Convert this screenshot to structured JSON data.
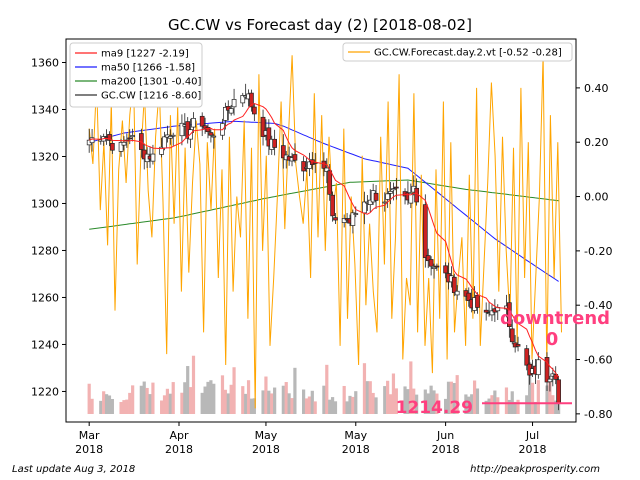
{
  "chart_data": {
    "type": "candlestick",
    "title": "GC.CW vs Forecast day (2)  [2018-08-02]",
    "footer_left": "Last update Aug  3, 2018",
    "footer_right": "http://peakprosperity.com",
    "x_ticks": [
      {
        "label1": "Mar",
        "label2": "2018",
        "day": 0
      },
      {
        "label1": "Apr",
        "label2": "2018",
        "day": 31
      },
      {
        "label1": "May",
        "label2": "2018",
        "day": 61
      },
      {
        "label1": "May",
        "label2": "2018",
        "day": 92
      },
      {
        "label1": "Jun",
        "label2": "2018",
        "day": 123
      },
      {
        "label1": "Jul",
        "label2": "2018",
        "day": 153
      }
    ],
    "x_range_days": [
      -8,
      168
    ],
    "left_axis": {
      "ticks": [
        1220,
        1240,
        1260,
        1280,
        1300,
        1320,
        1340,
        1360
      ],
      "range": [
        1207,
        1370
      ]
    },
    "right_axis": {
      "ticks": [
        "0.40",
        "0.20",
        "0.00",
        "-0.20",
        "-0.40",
        "-0.60",
        "-0.80"
      ],
      "tick_values": [
        0.4,
        0.2,
        0.0,
        -0.2,
        -0.4,
        -0.6,
        -0.8
      ],
      "range": [
        -0.83,
        0.58
      ]
    },
    "legend_left": [
      {
        "label": "ma9 [1227 -2.19]",
        "color": "#ff2020"
      },
      {
        "label": "ma50 [1266 -1.58]",
        "color": "#1f1fff"
      },
      {
        "label": "ma200 [1301 -0.40]",
        "color": "#2a8a2a"
      },
      {
        "label": "GC.CW [1216 -8.60]",
        "color": "#333333"
      }
    ],
    "legend_right": [
      {
        "label": "GC.CW.Forecast.day.2.vt [-0.52 -0.28]",
        "color": "#ffa500"
      }
    ],
    "annotations": {
      "trend_label": "downtrend",
      "trend_value": "0",
      "last_price": "1214.29",
      "last_price_value": 1215
    },
    "colors": {
      "up": "#ffffff",
      "down": "#cc2222",
      "forecast": "#ffa500",
      "ma9": "#ff2020",
      "ma50": "#1f1fff",
      "ma200": "#2a8a2a",
      "anno": "#ff3f7f",
      "vol_up": "#f2b2b2",
      "vol_down": "#b8b8b8"
    },
    "price_anchors": [
      [
        0,
        1327
      ],
      [
        5,
        1330
      ],
      [
        10,
        1322
      ],
      [
        14,
        1329
      ],
      [
        18,
        1322
      ],
      [
        22,
        1320
      ],
      [
        26,
        1328
      ],
      [
        30,
        1333
      ],
      [
        34,
        1330
      ],
      [
        38,
        1337
      ],
      [
        42,
        1328
      ],
      [
        46,
        1336
      ],
      [
        50,
        1344
      ],
      [
        54,
        1348
      ],
      [
        58,
        1336
      ],
      [
        62,
        1326
      ],
      [
        66,
        1322
      ],
      [
        70,
        1318
      ],
      [
        74,
        1316
      ],
      [
        78,
        1320
      ],
      [
        82,
        1314
      ],
      [
        84,
        1292
      ],
      [
        86,
        1296
      ],
      [
        90,
        1292
      ],
      [
        94,
        1300
      ],
      [
        98,
        1304
      ],
      [
        102,
        1302
      ],
      [
        106,
        1304
      ],
      [
        110,
        1300
      ],
      [
        112,
        1307
      ],
      [
        114,
        1300
      ],
      [
        116,
        1278
      ],
      [
        120,
        1272
      ],
      [
        124,
        1268
      ],
      [
        128,
        1262
      ],
      [
        132,
        1258
      ],
      [
        134,
        1256
      ],
      [
        136,
        1250
      ],
      [
        140,
        1256
      ],
      [
        142,
        1252
      ],
      [
        144,
        1254
      ],
      [
        146,
        1244
      ],
      [
        148,
        1238
      ],
      [
        150,
        1234
      ],
      [
        152,
        1226
      ],
      [
        154,
        1229
      ],
      [
        156,
        1234
      ],
      [
        158,
        1226
      ],
      [
        160,
        1230
      ],
      [
        162,
        1226
      ],
      [
        163,
        1216
      ]
    ],
    "forecast_values": [
      0.25,
      0.12,
      0.42,
      -0.05,
      0.2,
      -0.18,
      0.35,
      -0.42,
      0.1,
      0.28,
      0.05,
      0.3,
      0.44,
      -0.25,
      0.15,
      0.38,
      0.02,
      -0.15,
      0.22,
      0.4,
      -0.02,
      -0.58,
      0.3,
      -0.1,
      0.33,
      -0.35,
      0.18,
      -0.28,
      0.05,
      0.28,
      0.12,
      -0.5,
      0.2,
      -0.05,
      0.25,
      -0.3,
      0.1,
      -0.62,
      0.22,
      -0.35,
      0.0,
      -0.15,
      0.28,
      -0.45,
      0.18,
      -0.78,
      0.45,
      -0.2,
      0.15,
      -0.55,
      -0.3,
      0.0,
      0.35,
      -0.12,
      0.22,
      0.52,
      0.12,
      0.0,
      -0.1,
      0.1,
      -0.3,
      0.38,
      -0.15,
      0.3,
      -0.2,
      0.22,
      -0.05,
      0.05,
      -0.55,
      0.25,
      -0.45,
      0.0,
      -0.25,
      -0.62,
      0.15,
      -0.4,
      -0.1,
      -0.35,
      -0.5,
      0.22,
      -0.25,
      0.35,
      -0.45,
      -0.15,
      0.45,
      -0.6,
      -0.3,
      -0.4,
      0.38,
      -0.5,
      0.08,
      -0.55,
      -0.3,
      -0.65,
      0.1,
      -0.45,
      0.35,
      -0.6,
      0.2,
      -0.5,
      -0.3,
      -0.15,
      -0.55,
      0.08,
      -0.45,
      0.4,
      -0.55,
      -0.25,
      0.05,
      0.42,
      0.15,
      -0.35,
      0.22,
      -0.2,
      -0.45,
      0.18,
      -0.55,
      0.4,
      -0.3,
      0.2,
      -0.6,
      -0.3,
      0.0,
      0.52,
      -0.62,
      0.3,
      -0.3,
      0.2,
      -0.5
    ]
  }
}
